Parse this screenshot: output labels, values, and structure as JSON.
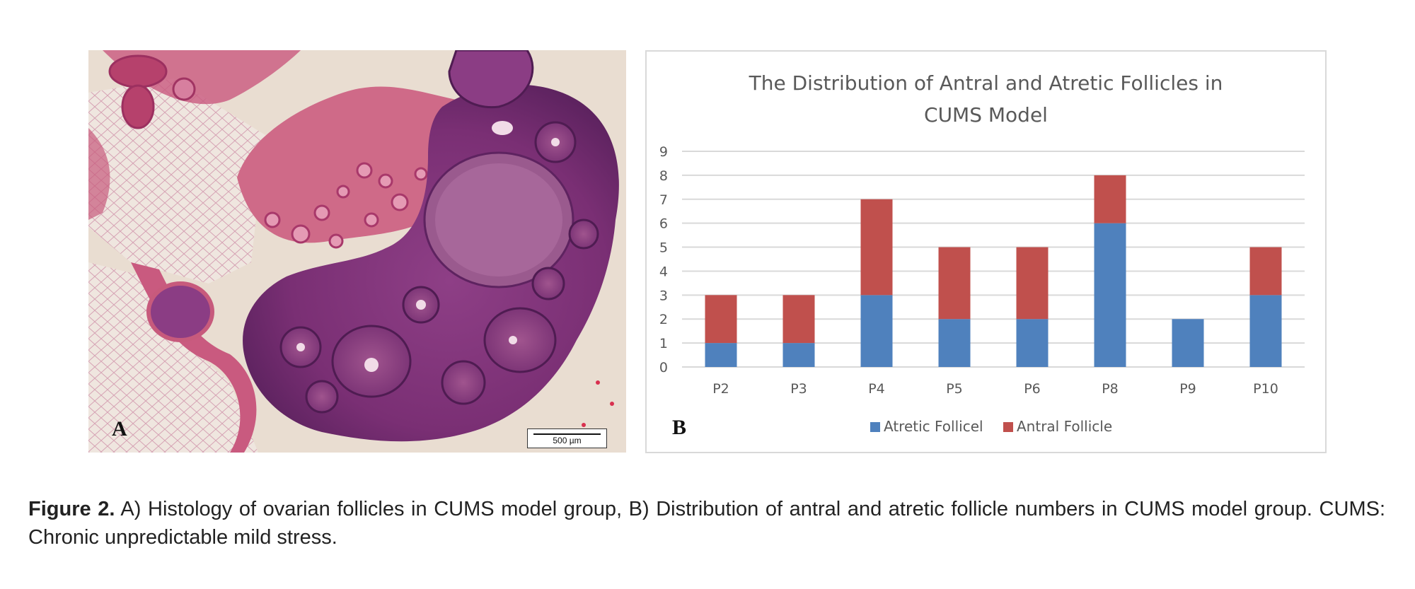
{
  "panel_a": {
    "letter": "A",
    "scale_bar": "500 µm"
  },
  "panel_b": {
    "letter": "B"
  },
  "chart_data": {
    "type": "bar",
    "stacked": true,
    "title_lines": [
      "The Distribution of Antral and Atretic Follicles in",
      "CUMS Model"
    ],
    "categories": [
      "P2",
      "P3",
      "P4",
      "P5",
      "P6",
      "P8",
      "P9",
      "P10"
    ],
    "series": [
      {
        "name": "Atretic Follicel",
        "values": [
          1,
          1,
          3,
          2,
          2,
          6,
          2,
          3
        ],
        "color": "#4f81bd"
      },
      {
        "name": "Antral Follicle",
        "values": [
          2,
          2,
          4,
          3,
          3,
          2,
          0,
          2
        ],
        "color": "#c0504d"
      }
    ],
    "ylim": [
      0,
      9
    ],
    "yticks": [
      0,
      1,
      2,
      3,
      4,
      5,
      6,
      7,
      8,
      9
    ],
    "grid": true,
    "legend_position": "bottom"
  },
  "caption": {
    "label": "Figure 2.",
    "text": " A) Histology of ovarian follicles in CUMS model group, B) Distribution of antral and atretic follicle numbers in CUMS model group. CUMS: Chronic unpredictable mild stress."
  }
}
